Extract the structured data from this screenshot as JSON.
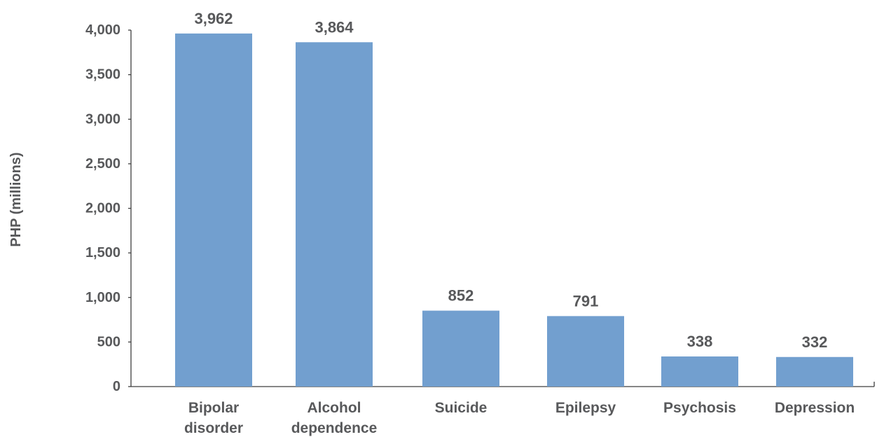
{
  "chart_data": {
    "type": "bar",
    "title": "",
    "xlabel": "",
    "ylabel": "PHP (millions)",
    "categories": [
      [
        "Bipolar",
        "disorder"
      ],
      [
        "Alcohol",
        "dependence"
      ],
      [
        "Suicide"
      ],
      [
        "Epilepsy"
      ],
      [
        "Psychosis"
      ],
      [
        "Depression"
      ]
    ],
    "values": [
      3962,
      3864,
      852,
      791,
      338,
      332
    ],
    "value_labels": [
      "3,962",
      "3,864",
      "852",
      "791",
      "338",
      "332"
    ],
    "ylim": [
      0,
      4000
    ],
    "yticks": [
      0,
      500,
      1000,
      1500,
      2000,
      2500,
      3000,
      3500,
      4000
    ],
    "ytick_labels": [
      "0",
      "500",
      "1,000",
      "1,500",
      "2,000",
      "2,500",
      "3,000",
      "3,500",
      "4,000"
    ],
    "grid": false,
    "legend": "none",
    "bar_color": "#729fcf",
    "text_color": "#58595b",
    "axis_color": "#3f3f3f"
  }
}
